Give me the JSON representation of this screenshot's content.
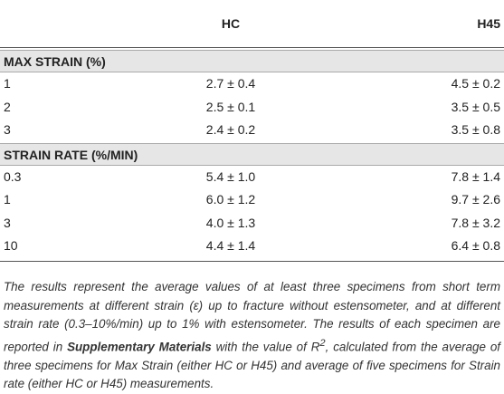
{
  "table": {
    "columns": [
      "HC",
      "H45"
    ],
    "sections": [
      {
        "title": "MAX STRAIN (%)",
        "rows": [
          [
            "1",
            "2.7 ± 0.4",
            "4.5 ± 0.2"
          ],
          [
            "2",
            "2.5 ± 0.1",
            "3.5 ± 0.5"
          ],
          [
            "3",
            "2.4 ± 0.2",
            "3.5 ± 0.8"
          ]
        ]
      },
      {
        "title": "STRAIN RATE (%/MIN)",
        "rows": [
          [
            "0.3",
            "5.4 ± 1.0",
            "7.8 ± 1.4"
          ],
          [
            "1",
            "6.0 ± 1.2",
            "9.7 ± 2.6"
          ],
          [
            "3",
            "4.0 ± 1.3",
            "7.8 ± 3.2"
          ],
          [
            "10",
            "4.4 ± 1.4",
            "6.4 ± 0.8"
          ]
        ]
      }
    ]
  },
  "footnote": {
    "before": "The results represent the average values of at least three specimens from short term measurements at different strain (ε) up to fracture without estensometer, and at different strain rate (0.3–10%/min) up to 1% with estensometer. The results of each specimen are reported in ",
    "bold": "Supplementary Materials",
    "middle": " with the value of R",
    "sup": "2",
    "after": ", calculated from the average of three specimens for Max Strain (either HC or H45) and average of five specimens for Strain rate (either HC or H45) measurements."
  }
}
